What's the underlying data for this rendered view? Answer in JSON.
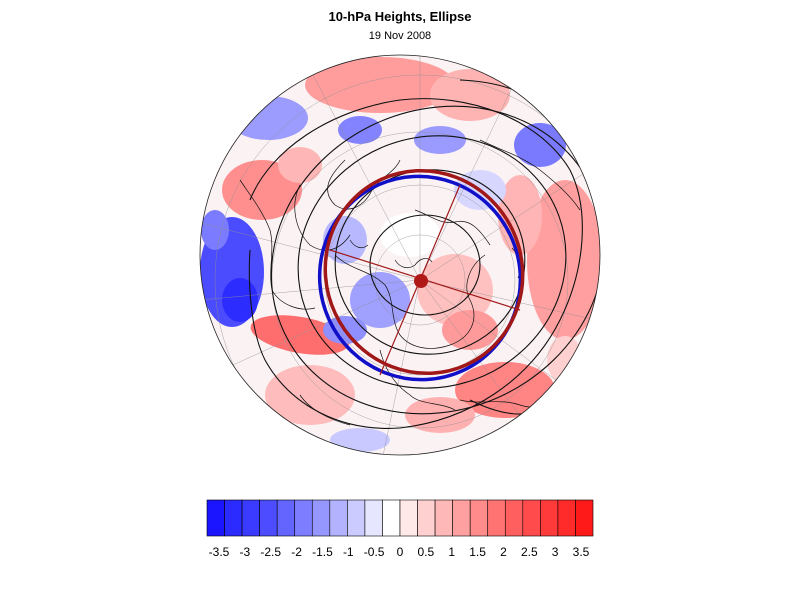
{
  "header": {
    "title": "10-hPa Heights, Ellipse",
    "subtitle": "19 Nov 2008"
  },
  "colorbar": {
    "labels": [
      "-3.5",
      "-3",
      "-2.5",
      "-2",
      "-1.5",
      "-1",
      "-0.5",
      "0",
      "0.5",
      "1",
      "1.5",
      "2",
      "2.5",
      "3",
      "3.5"
    ],
    "colors": [
      "#1a14ff",
      "#2b2bff",
      "#3b3bff",
      "#4d4dff",
      "#6464ff",
      "#7d7dff",
      "#9696ff",
      "#b2b2ff",
      "#cbcbff",
      "#e6e6ff",
      "#ffffff",
      "#ffe8e8",
      "#ffd0d0",
      "#ffb8b8",
      "#ffa0a0",
      "#ff8b8b",
      "#ff7373",
      "#ff5f5f",
      "#ff4b4b",
      "#ff3a3a",
      "#ff2a2a",
      "#ff1a1a"
    ]
  },
  "map": {
    "projection": "north polar stereographic",
    "ellipse_colors": {
      "observed": "#1010c8",
      "fitted": "#a01818"
    },
    "centroid_color": "#b01818"
  }
}
